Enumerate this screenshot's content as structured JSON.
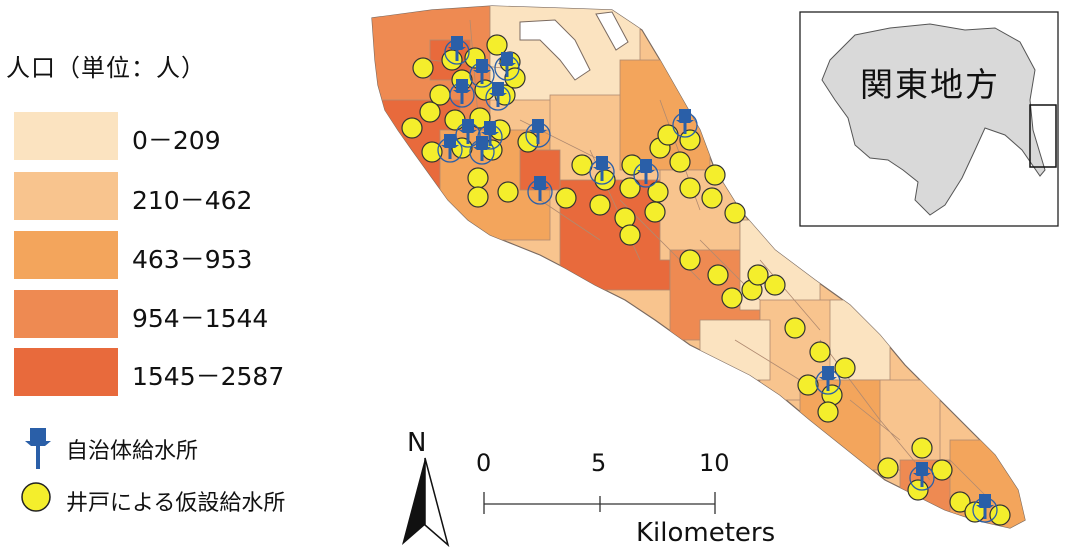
{
  "legend": {
    "title": "人口（単位：人）",
    "classes": [
      {
        "label": "0－209",
        "color": "#fbe3c0"
      },
      {
        "label": "210－462",
        "color": "#f8c48e"
      },
      {
        "label": "463－953",
        "color": "#f3a55c"
      },
      {
        "label": "954－1544",
        "color": "#ee8a52"
      },
      {
        "label": "1545－2587",
        "color": "#e86a3c"
      }
    ],
    "symbols": [
      {
        "label": "自治体給水所",
        "icon": "blue-pushpin-icon",
        "color": "#2a5fa8"
      },
      {
        "label": "井戸による仮設給水所",
        "icon": "yellow-circle-icon",
        "color": "#f4ee2c"
      }
    ]
  },
  "north_arrow": {
    "label": "N"
  },
  "scale_bar": {
    "ticks": [
      "0",
      "5",
      "10"
    ],
    "unit": "Kilometers"
  },
  "inset": {
    "label": "関東地方"
  },
  "colors": {
    "outline": "#7a6a60",
    "pin": "#2a5fa8",
    "well": "#f4ee2c"
  }
}
